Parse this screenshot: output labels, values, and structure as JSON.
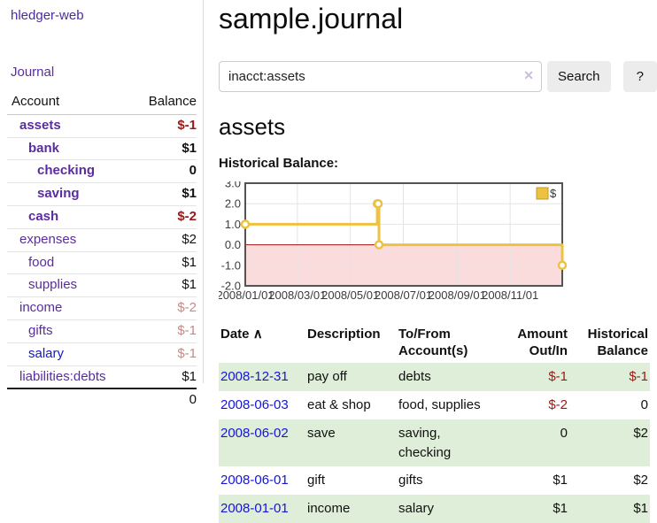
{
  "app": {
    "brand": "hledger-web"
  },
  "sidebar": {
    "nav_journal": "Journal",
    "accounts": {
      "col_account": "Account",
      "col_balance": "Balance",
      "rows": [
        {
          "account": "assets",
          "balance": "$-1",
          "indent": 0,
          "bold": true,
          "blue": false
        },
        {
          "account": "bank",
          "balance": "$1",
          "indent": 1,
          "bold": true,
          "blue": false
        },
        {
          "account": "checking",
          "balance": "0",
          "indent": 2,
          "bold": true,
          "blue": false
        },
        {
          "account": "saving",
          "balance": "$1",
          "indent": 2,
          "bold": true,
          "blue": false
        },
        {
          "account": "cash",
          "balance": "$-2",
          "indent": 1,
          "bold": true,
          "blue": false
        },
        {
          "account": "expenses",
          "balance": "$2",
          "indent": 0,
          "bold": false,
          "blue": false
        },
        {
          "account": "food",
          "balance": "$1",
          "indent": 1,
          "bold": false,
          "blue": false
        },
        {
          "account": "supplies",
          "balance": "$1",
          "indent": 1,
          "bold": false,
          "blue": false
        },
        {
          "account": "income",
          "balance": "$-2",
          "indent": 0,
          "bold": false,
          "blue": false
        },
        {
          "account": "gifts",
          "balance": "$-1",
          "indent": 1,
          "bold": false,
          "blue": false
        },
        {
          "account": "salary",
          "balance": "$-1",
          "indent": 1,
          "bold": false,
          "blue": true
        },
        {
          "account": "liabilities:debts",
          "balance": "$1",
          "indent": 0,
          "bold": false,
          "blue": false
        }
      ],
      "total": "0"
    }
  },
  "main": {
    "title": "sample.journal",
    "search": {
      "value": "inacct:assets",
      "clear_icon": "✕",
      "search_label": "Search",
      "help_label": "?"
    },
    "account_heading": "assets",
    "section_label": "Historical Balance:"
  },
  "chart_data": {
    "type": "line",
    "title": "Historical Balance:",
    "x_start": "2008-01-01",
    "x_end": "2008-12-31",
    "ylim": [
      -2.0,
      3.0
    ],
    "yticks": [
      3.0,
      2.0,
      1.0,
      0.0,
      -1.0,
      -2.0
    ],
    "xticks": [
      "2008/01/01",
      "2008/03/01",
      "2008/05/01",
      "2008/07/01",
      "2008/09/01",
      "2008/11/01"
    ],
    "grid": true,
    "legend": {
      "label": "$",
      "position": "top-right"
    },
    "line_color": "#edc240",
    "legend_box_border": "#bd9b28",
    "negative_region_color": "#fbdcdc",
    "zero_line_color": "#a01010",
    "series": [
      {
        "name": "$",
        "step": true,
        "points": [
          {
            "date": "2008-01-01",
            "value": 1
          },
          {
            "date": "2008-06-01",
            "value": 2
          },
          {
            "date": "2008-06-02",
            "value": 2
          },
          {
            "date": "2008-06-03",
            "value": 0
          },
          {
            "date": "2008-12-31",
            "value": -1
          }
        ]
      }
    ]
  },
  "register": {
    "sort_icon": "∧",
    "headers": {
      "date": [
        "Date"
      ],
      "description": [
        "Description"
      ],
      "accounts": [
        "To/From",
        "Account(s)"
      ],
      "amount": [
        "Amount",
        "Out/In"
      ],
      "balance": [
        "Historical",
        "Balance"
      ]
    },
    "rows": [
      {
        "date": "2008-12-31",
        "description": "pay off",
        "accounts": "debts",
        "amount": "$-1",
        "balance": "$-1"
      },
      {
        "date": "2008-06-03",
        "description": "eat & shop",
        "accounts": "food, supplies",
        "amount": "$-2",
        "balance": "0"
      },
      {
        "date": "2008-06-02",
        "description": "save",
        "accounts": "saving, checking",
        "amount": "0",
        "balance": "$2"
      },
      {
        "date": "2008-06-01",
        "description": "gift",
        "accounts": "gifts",
        "amount": "$1",
        "balance": "$2"
      },
      {
        "date": "2008-01-01",
        "description": "income",
        "accounts": "salary",
        "amount": "$1",
        "balance": "$1"
      }
    ]
  }
}
